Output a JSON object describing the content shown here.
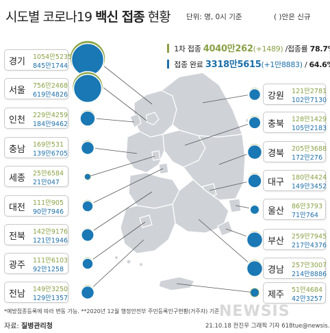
{
  "title": {
    "part1": "시도별 코로나19 ",
    "part2": "백신 접종",
    "part3": " 현황"
  },
  "unit": "단위: 명, 0시 기준",
  "note": "( )안은 신규",
  "summary": {
    "first": {
      "label": "1차 접종",
      "value": "4040만262",
      "new": "(+1489)",
      "rate_label": "/접종률",
      "rate": "78.7%"
    },
    "complete": {
      "label": "접종 완료",
      "value": "3318만5615",
      "new": "(+1만8883)",
      "rate_label": "/",
      "rate": "64.6%"
    }
  },
  "regions_left": [
    {
      "name": "경기",
      "first": "1054만5235",
      "complete": "845만1744"
    },
    {
      "name": "서울",
      "first": "756만2468",
      "complete": "619만4826"
    },
    {
      "name": "인천",
      "first": "229만4259",
      "complete": "184만9462"
    },
    {
      "name": "충남",
      "first": "169만531",
      "complete": "139만6705"
    },
    {
      "name": "세종",
      "first": "25만6584",
      "complete": "21만047"
    },
    {
      "name": "대전",
      "first": "111만905",
      "complete": "90만7946"
    },
    {
      "name": "전북",
      "first": "142만9176",
      "complete": "121만1946"
    },
    {
      "name": "광주",
      "first": "111만6103",
      "complete": "92만1258"
    },
    {
      "name": "전남",
      "first": "149만3250",
      "complete": "129만1357"
    }
  ],
  "regions_right": [
    {
      "name": "강원",
      "first": "121만2781",
      "complete": "102만7130"
    },
    {
      "name": "충북",
      "first": "128만1429",
      "complete": "105만2183"
    },
    {
      "name": "경북",
      "first": "205만3688",
      "complete": "172만276"
    },
    {
      "name": "대구",
      "first": "180만4424",
      "complete": "149만3452"
    },
    {
      "name": "울산",
      "first": "86만3793",
      "complete": "71만764"
    },
    {
      "name": "부산",
      "first": "259만7945",
      "complete": "217만4376"
    },
    {
      "name": "경남",
      "first": "257만3007",
      "complete": "214만8886"
    },
    {
      "name": "제주",
      "first": "51만4684",
      "complete": "42만3257"
    }
  ],
  "footnote": "*예방접종등록에 따라 변동 가능. **2020년 12월 행정안전부 주민등록인구현황(거주자) 기준",
  "source": {
    "label": "자료: ",
    "value": "질병관리청"
  },
  "credit": "21.10.18 전진우 그래픽 기자 618tue@newsis.com",
  "watermark": "NEWSIS",
  "colors": {
    "first": "#8aa045",
    "complete": "#1e6fa8",
    "bubble_first": "#8fa84a",
    "bubble_complete": "#1a78b4",
    "map": "#cfd3d8"
  }
}
